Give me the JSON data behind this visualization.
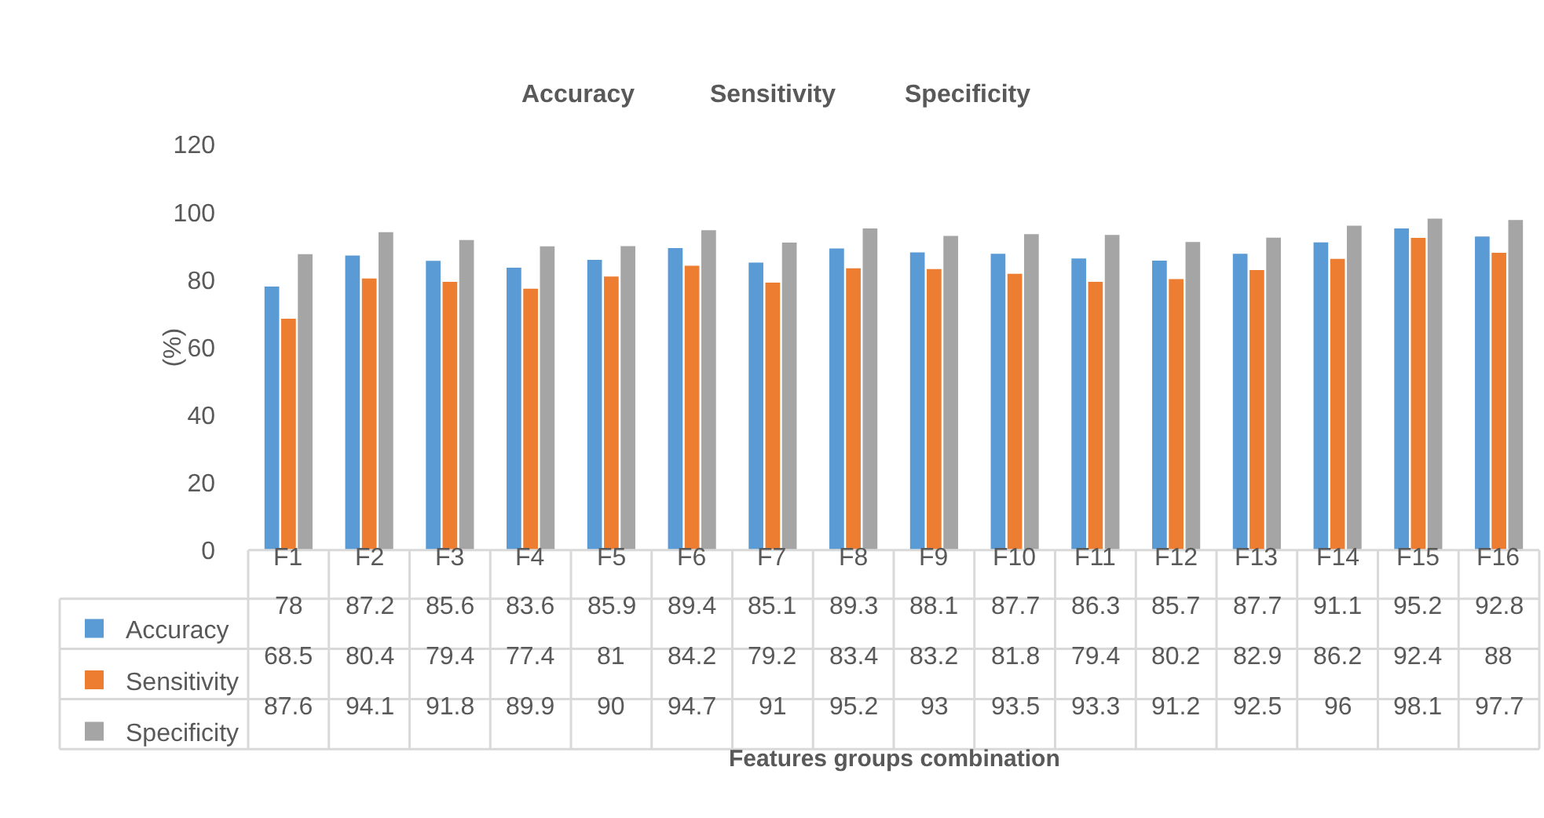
{
  "chart_data": {
    "type": "bar",
    "annotations": [
      "Features groups combination"
    ],
    "ylabel": "(%)",
    "categories": [
      "F1",
      "F2",
      "F3",
      "F4",
      "F5",
      "F6",
      "F7",
      "F8",
      "F9",
      "F10",
      "F11",
      "F12",
      "F13",
      "F14",
      "F15",
      "F16"
    ],
    "series": [
      {
        "name": "Accuracy",
        "color": "#5b9bd5",
        "values": [
          78,
          87.2,
          85.6,
          83.6,
          85.9,
          89.4,
          85.1,
          89.3,
          88.1,
          87.7,
          86.3,
          85.7,
          87.7,
          91.1,
          95.2,
          92.8
        ]
      },
      {
        "name": "Sensitivity",
        "color": "#ed7d31",
        "values": [
          68.5,
          80.4,
          79.4,
          77.4,
          81,
          84.2,
          79.2,
          83.4,
          83.2,
          81.8,
          79.4,
          80.2,
          82.9,
          86.2,
          92.4,
          88
        ]
      },
      {
        "name": "Specificity",
        "color": "#a5a5a5",
        "values": [
          87.6,
          94.1,
          91.8,
          89.9,
          90,
          94.7,
          91,
          95.2,
          93,
          93.5,
          93.3,
          91.2,
          92.5,
          96,
          98.1,
          97.7
        ]
      }
    ],
    "ylim": [
      0,
      120
    ],
    "yticks": [
      0,
      20,
      40,
      60,
      80,
      100,
      120
    ],
    "grid": false,
    "legend": "bottom left",
    "data_labels": true
  }
}
